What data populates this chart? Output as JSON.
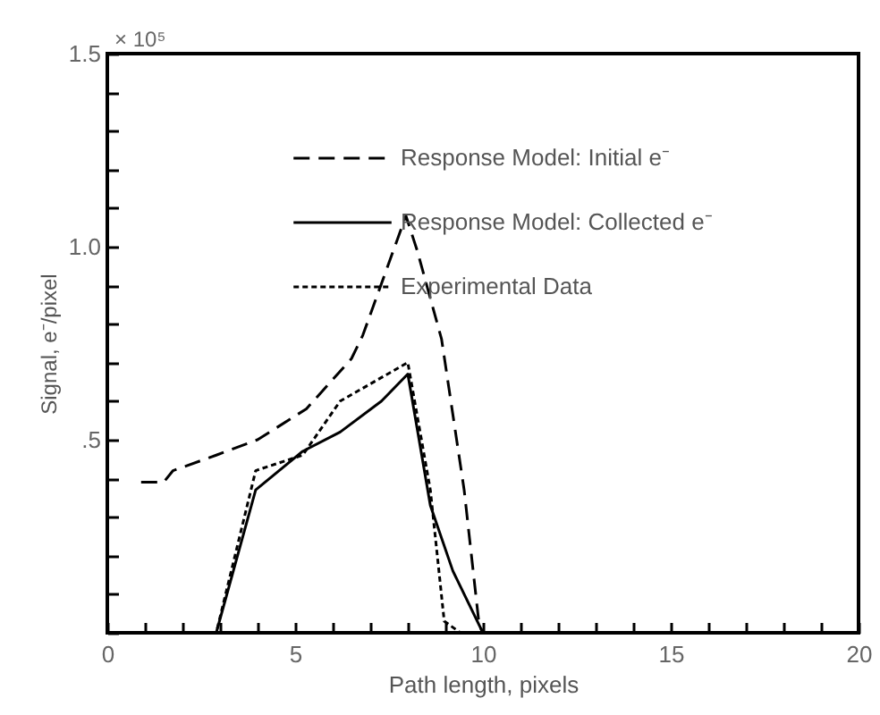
{
  "chart_data": {
    "type": "line",
    "xlabel": "Path length, pixels",
    "ylabel": "Signal, e⁻/pixel",
    "annotations": [
      "× 10⁵"
    ],
    "xlim": [
      0,
      20
    ],
    "ylim": [
      0,
      1.5
    ],
    "xticks": [
      0,
      {
        "value": 1,
        "label": null
      },
      {
        "value": 2,
        "label": null
      },
      {
        "value": 3,
        "label": null
      },
      {
        "value": 4,
        "label": null
      },
      5,
      {
        "value": 6,
        "label": null
      },
      {
        "value": 7,
        "label": null
      },
      {
        "value": 8,
        "label": null
      },
      {
        "value": 9,
        "label": null
      },
      10,
      {
        "value": 11,
        "label": null
      },
      {
        "value": 12,
        "label": null
      },
      {
        "value": 13,
        "label": null
      },
      {
        "value": 14,
        "label": null
      },
      15,
      {
        "value": 16,
        "label": null
      },
      {
        "value": 17,
        "label": null
      },
      {
        "value": 18,
        "label": null
      },
      {
        "value": 19,
        "label": null
      },
      20
    ],
    "yticks": [
      {
        "value": 0,
        "label": null
      },
      {
        "value": 0.1,
        "label": null
      },
      {
        "value": 0.2,
        "label": null
      },
      {
        "value": 0.3,
        "label": null
      },
      {
        "value": 0.4,
        "label": null
      },
      {
        "value": 0.5,
        "label": ".5"
      },
      {
        "value": 0.6,
        "label": null
      },
      {
        "value": 0.7,
        "label": null
      },
      {
        "value": 0.8,
        "label": null
      },
      {
        "value": 0.9,
        "label": null
      },
      {
        "value": 1.0,
        "label": "1.0"
      },
      {
        "value": 1.1,
        "label": null
      },
      {
        "value": 1.2,
        "label": null
      },
      {
        "value": 1.3,
        "label": null
      },
      {
        "value": 1.4,
        "label": null
      },
      {
        "value": 1.5,
        "label": "1.5"
      }
    ],
    "grid": false,
    "legend": "top right",
    "marker": "none",
    "series": [
      {
        "name": "Response Model:  Initial e⁻",
        "color": "#000000",
        "line_style": "dashed",
        "x": [
          0.9,
          1.5,
          1.75,
          2.9,
          4.0,
          5.3,
          6.5,
          6.8,
          7.95,
          8.25,
          8.9,
          9.5,
          9.9,
          10
        ],
        "values": [
          0.39,
          0.39,
          0.42,
          0.46,
          0.5,
          0.58,
          0.71,
          0.77,
          1.08,
          0.99,
          0.76,
          0.37,
          0.02,
          0
        ]
      },
      {
        "name": "Response Model:  Collected e⁻",
        "color": "#000000",
        "line_style": "solid",
        "x": [
          2.3,
          2.9,
          3.95,
          5.2,
          6.2,
          7.3,
          8.0,
          8.6,
          9.2,
          9.9,
          10
        ],
        "values": [
          0,
          0,
          0.37,
          0.47,
          0.52,
          0.6,
          0.67,
          0.33,
          0.16,
          0.02,
          0
        ]
      },
      {
        "name": "Experimental Data",
        "color": "#000000",
        "line_style": "dotted",
        "x": [
          2.3,
          2.9,
          3.95,
          5.2,
          6.2,
          8.0,
          8.6,
          8.97,
          9.4,
          10
        ],
        "values": [
          0,
          0,
          0.42,
          0.46,
          0.6,
          0.7,
          0.37,
          0.03,
          0,
          0
        ]
      }
    ]
  }
}
